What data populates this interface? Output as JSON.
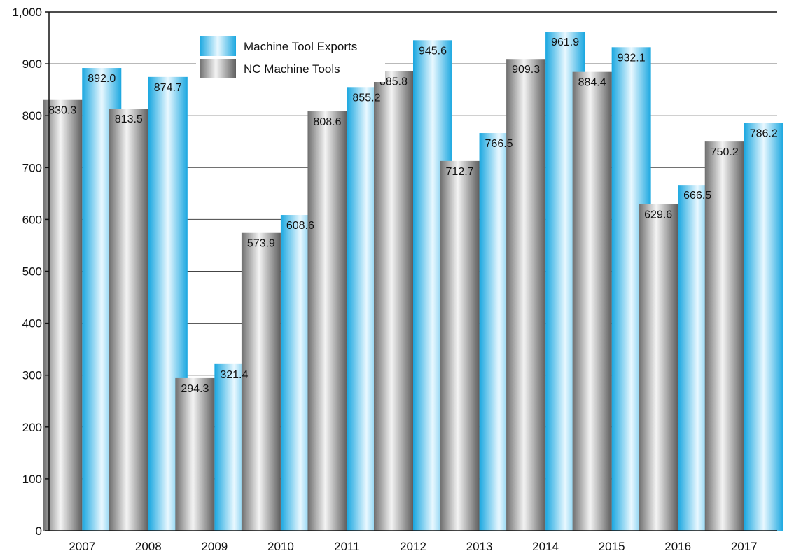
{
  "chart_data": {
    "type": "bar",
    "title": "",
    "xlabel": "",
    "ylabel": "",
    "ylim": [
      0,
      1000
    ],
    "yticks": [
      0,
      100,
      200,
      300,
      400,
      500,
      600,
      700,
      800,
      900,
      1000
    ],
    "ytick_labels": [
      "0",
      "100",
      "200",
      "300",
      "400",
      "500",
      "600",
      "700",
      "800",
      "900",
      "1,000"
    ],
    "grid": true,
    "legend_position": "top-left",
    "categories": [
      "2007",
      "2008",
      "2009",
      "2010",
      "2011",
      "2012",
      "2013",
      "2014",
      "2015",
      "2016",
      "2017"
    ],
    "series": [
      {
        "name": "NC Machine Tools",
        "color": "#8c8c8c",
        "values": [
          830.3,
          813.5,
          294.3,
          573.9,
          808.6,
          885.8,
          712.7,
          909.3,
          884.4,
          629.6,
          750.2
        ],
        "labels": [
          "830.3",
          "813.5",
          "294.3",
          "573.9",
          "808.6",
          "885.8",
          "712.7",
          "909.3",
          "884.4",
          "629.6",
          "750.2"
        ]
      },
      {
        "name": "Machine Tool Exports",
        "color": "#1aa7e0",
        "values": [
          892.0,
          874.7,
          321.4,
          608.6,
          855.2,
          945.6,
          766.5,
          961.9,
          932.1,
          666.5,
          786.2
        ],
        "labels": [
          "892.0",
          "874.7",
          "321.4",
          "608.6",
          "855.2",
          "945.6",
          "766.5",
          "961.9",
          "932.1",
          "666.5",
          "786.2"
        ]
      }
    ]
  }
}
